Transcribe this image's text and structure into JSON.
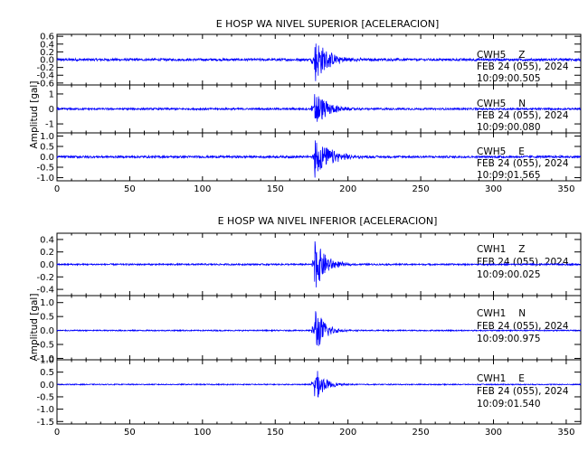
{
  "chart_data": [
    {
      "type": "line",
      "title": "E HOSP WA NIVEL SUPERIOR [ACELERACION]",
      "ylabel": "Amplitud [gal]",
      "xlabel": "",
      "xlim": [
        0,
        360
      ],
      "xticks": [
        "0",
        "50",
        "100",
        "150",
        "200",
        "250",
        "300",
        "350"
      ],
      "xtick_values": [
        0,
        50,
        100,
        150,
        200,
        250,
        300,
        350
      ],
      "color": "#0000ff",
      "panels": [
        {
          "station": "CWH5",
          "component": "Z",
          "date": "FEB 24 (055), 2024",
          "time": "10:09:00.505",
          "ylim": [
            -0.65,
            0.65
          ],
          "yticks": [
            "0.6",
            "0.4",
            "0.2",
            "0.0",
            "-0.2",
            "-0.4",
            "-0.6"
          ],
          "ytick_values": [
            0.6,
            0.4,
            0.2,
            0.0,
            -0.2,
            -0.4,
            -0.6
          ],
          "event_time": 177,
          "peak": 0.6,
          "noise": 0.03,
          "decay": 9
        },
        {
          "station": "CWH5",
          "component": "N",
          "date": "FEB 24 (055), 2024",
          "time": "10:09:00.080",
          "ylim": [
            -1.6,
            1.6
          ],
          "yticks": [
            "1",
            "0",
            "-1"
          ],
          "ytick_values": [
            1,
            0,
            -1
          ],
          "event_time": 177,
          "peak": 1.4,
          "noise": 0.06,
          "decay": 8
        },
        {
          "station": "CWH5",
          "component": "E",
          "date": "FEB 24 (055), 2024",
          "time": "10:09:01.565",
          "ylim": [
            -1.15,
            1.15
          ],
          "yticks": [
            "1.0",
            "0.5",
            "0.0",
            "-0.5",
            "-1.0"
          ],
          "ytick_values": [
            1.0,
            0.5,
            0.0,
            -0.5,
            -1.0
          ],
          "event_time": 177,
          "peak": 1.05,
          "noise": 0.05,
          "decay": 10
        }
      ]
    },
    {
      "type": "line",
      "title": "E HOSP WA NIVEL INFERIOR [ACELERACION]",
      "ylabel": "Amplitud [gal]",
      "xlabel": "",
      "xlim": [
        0,
        360
      ],
      "xticks": [
        "0",
        "50",
        "100",
        "150",
        "200",
        "250",
        "300",
        "350"
      ],
      "xtick_values": [
        0,
        50,
        100,
        150,
        200,
        250,
        300,
        350
      ],
      "color": "#0000ff",
      "panels": [
        {
          "station": "CWH1",
          "component": "Z",
          "date": "FEB 24 (055), 2024",
          "time": "10:09:00.025",
          "ylim": [
            -0.5,
            0.5
          ],
          "yticks": [
            "0.4",
            "0.2",
            "0.0",
            "-0.2",
            "-0.4"
          ],
          "ytick_values": [
            0.4,
            0.2,
            0.0,
            -0.2,
            -0.4
          ],
          "event_time": 177,
          "peak": 0.45,
          "noise": 0.012,
          "decay": 7
        },
        {
          "station": "CWH1",
          "component": "N",
          "date": "FEB 24 (055), 2024",
          "time": "10:09:00.975",
          "ylim": [
            -1.05,
            1.25
          ],
          "yticks": [
            "1.0",
            "0.5",
            "0.0",
            "-0.5",
            "-1.0"
          ],
          "ytick_values": [
            1.0,
            0.5,
            0.0,
            -0.5,
            -1.0
          ],
          "event_time": 177,
          "peak": 1.0,
          "noise": 0.02,
          "decay": 6
        },
        {
          "station": "CWH1",
          "component": "E",
          "date": "FEB 24 (055), 2024",
          "time": "10:09:01.540",
          "ylim": [
            -1.6,
            1.0
          ],
          "yticks": [
            "1.0",
            "0.5",
            "0.0",
            "-0.5",
            "-1.0",
            "-1.5"
          ],
          "ytick_values": [
            1.0,
            0.5,
            0.0,
            -0.5,
            -1.0,
            -1.5
          ],
          "event_time": 177,
          "peak": 0.8,
          "noise": 0.02,
          "decay": 6
        }
      ]
    }
  ]
}
